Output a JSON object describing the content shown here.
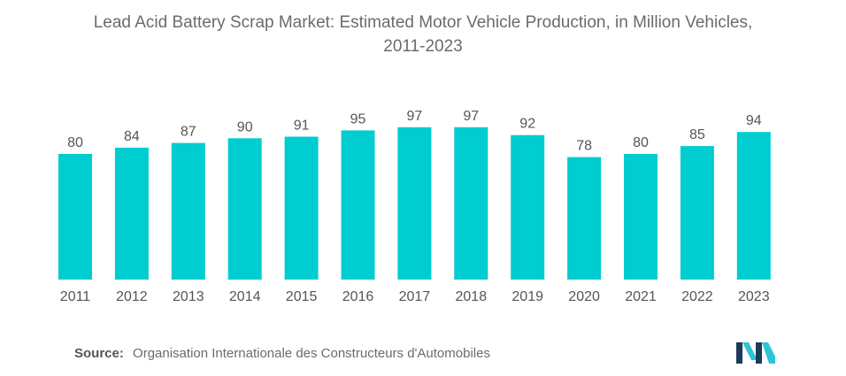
{
  "chart_data": {
    "type": "bar",
    "title_line1": "Lead Acid Battery Scrap Market: Estimated Motor Vehicle Production, in Million Vehicles,",
    "title_line2": "2011-2023",
    "categories": [
      "2011",
      "2012",
      "2013",
      "2014",
      "2015",
      "2016",
      "2017",
      "2018",
      "2019",
      "2020",
      "2021",
      "2022",
      "2023"
    ],
    "values": [
      80,
      84,
      87,
      90,
      91,
      95,
      97,
      97,
      92,
      78,
      80,
      85,
      94
    ],
    "xlabel": "",
    "ylabel": "",
    "bar_color": "#00CDD0",
    "grid": false,
    "legend": "none",
    "data_labels": true
  },
  "source": {
    "label": "Source:",
    "text": "Organisation Internationale des Constructeurs d'Automobiles"
  },
  "logo": {
    "icon": "mordor-intelligence-logo-icon",
    "colors": [
      "#1B3A5C",
      "#2EC4D6"
    ]
  }
}
